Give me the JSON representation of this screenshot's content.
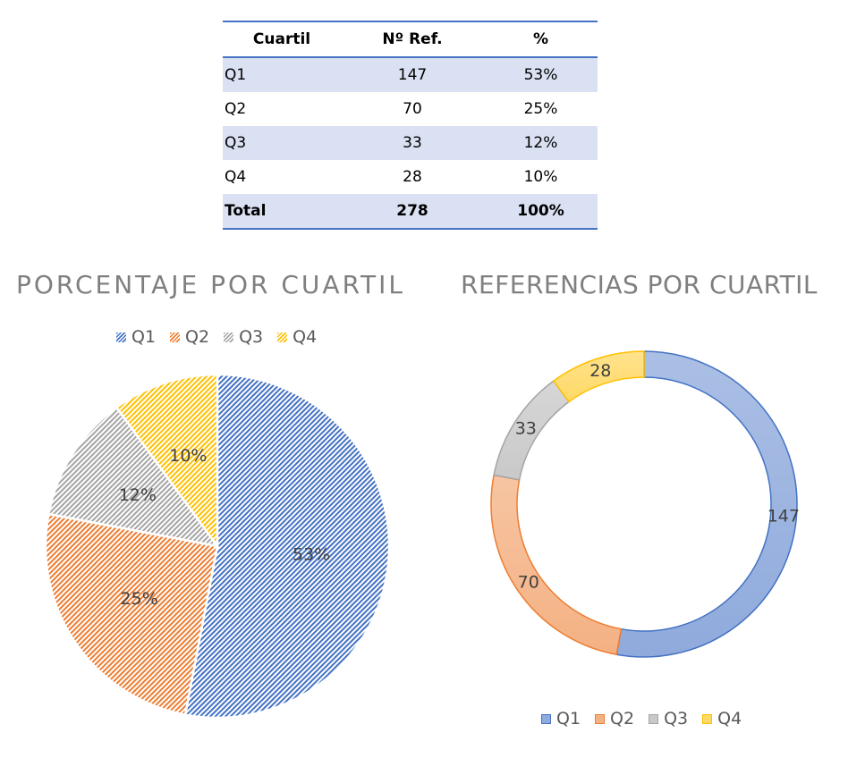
{
  "table": {
    "headers": [
      "Cuartil",
      "Nº Ref.",
      "%"
    ],
    "rows": [
      {
        "label": "Q1",
        "refs": "147",
        "pct": "53%"
      },
      {
        "label": "Q2",
        "refs": "70",
        "pct": "25%"
      },
      {
        "label": "Q3",
        "refs": "33",
        "pct": "12%"
      },
      {
        "label": "Q4",
        "refs": "28",
        "pct": "10%"
      }
    ],
    "total": {
      "label": "Total",
      "refs": "278",
      "pct": "100%"
    }
  },
  "colors": {
    "Q1": "#4472c4",
    "Q2": "#ed7d31",
    "Q3": "#a5a5a5",
    "Q4": "#ffc000",
    "Q1_fill": "#8faadc",
    "Q2_fill": "#f4b183",
    "Q3_fill": "#c9c9c9",
    "Q4_fill": "#ffd966",
    "table_header_rule": "#4472c4",
    "table_shade": "#d9e1f2"
  },
  "chart_data": [
    {
      "type": "pie",
      "title": "PORCENTAJE POR CUARTIL",
      "categories": [
        "Q1",
        "Q2",
        "Q3",
        "Q4"
      ],
      "values": [
        53,
        25,
        12,
        10
      ],
      "data_labels": [
        "53%",
        "25%",
        "12%",
        "10%"
      ],
      "legend": "top",
      "fill_pattern": "diagonal-hatch"
    },
    {
      "type": "pie",
      "subtype": "doughnut",
      "title": "REFERENCIAS POR CUARTIL",
      "categories": [
        "Q1",
        "Q2",
        "Q3",
        "Q4"
      ],
      "values": [
        147,
        70,
        33,
        28
      ],
      "data_labels": [
        "147",
        "70",
        "33",
        "28"
      ],
      "legend": "bottom",
      "fill_pattern": "gradient"
    }
  ]
}
